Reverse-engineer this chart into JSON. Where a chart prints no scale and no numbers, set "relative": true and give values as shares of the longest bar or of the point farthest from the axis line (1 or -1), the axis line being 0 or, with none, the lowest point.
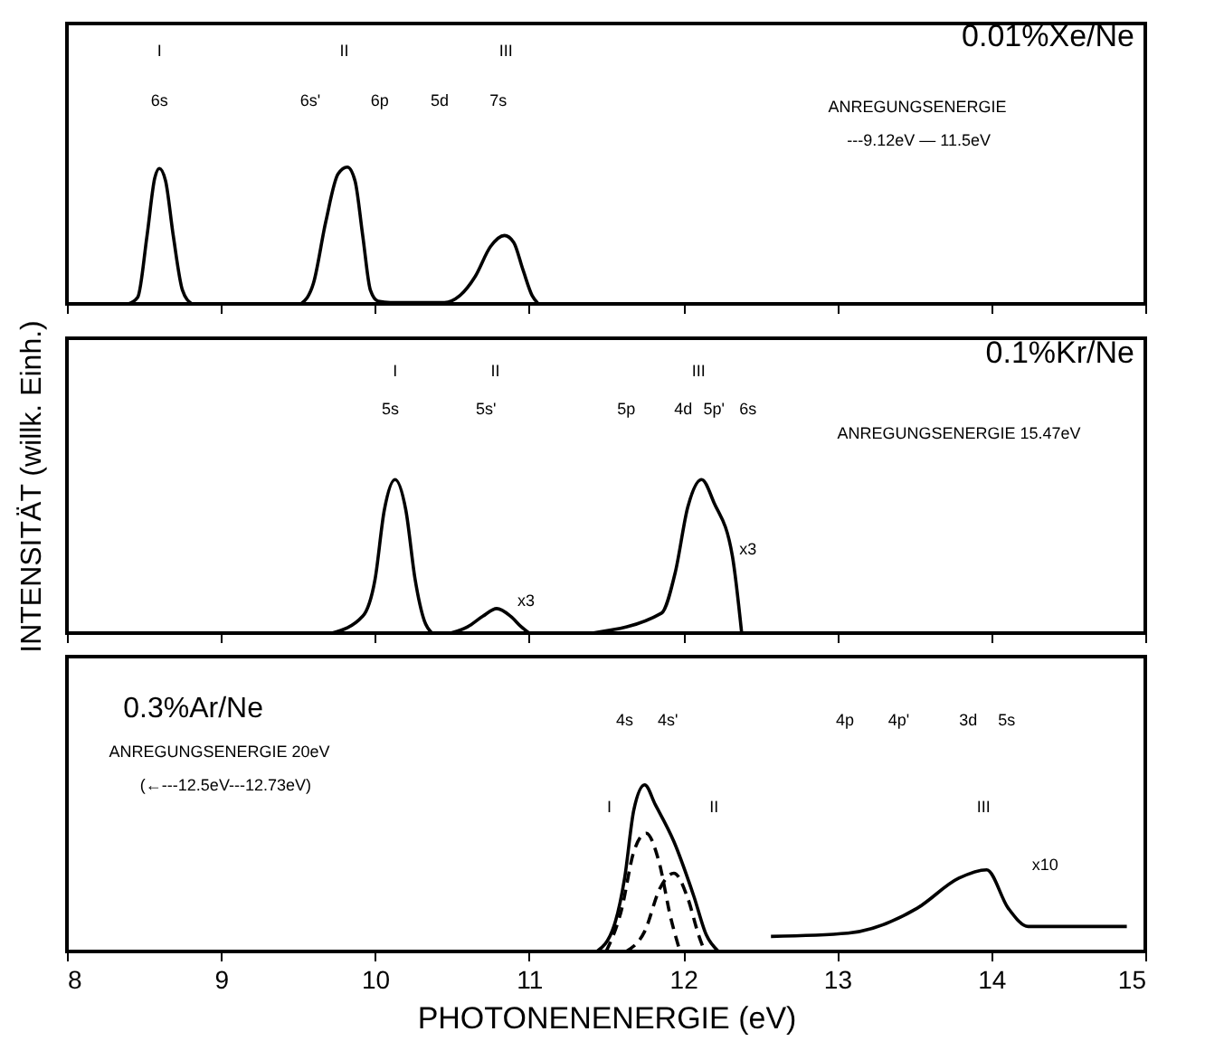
{
  "chart_data": [
    {
      "type": "line",
      "title": "0.01%Xe/Ne",
      "relative": true,
      "xlim": [
        8,
        15
      ],
      "xticks": [
        8,
        9,
        10,
        11,
        12,
        13,
        14,
        15
      ],
      "tick_labels": false,
      "series": [
        {
          "color": "#000000",
          "line_style": "solid",
          "x": [
            8.4,
            8.46,
            8.52,
            8.57,
            8.6,
            8.64,
            8.69,
            8.75,
            8.81
          ],
          "values": [
            0,
            0.05,
            0.5,
            0.92,
            0.99,
            0.9,
            0.5,
            0.1,
            0
          ]
        },
        {
          "color": "#000000",
          "line_style": "solid",
          "x": [
            9.52,
            9.6,
            9.68,
            9.76,
            9.82,
            9.87,
            9.92,
            9.97,
            10.02,
            10.1,
            10.45,
            10.55,
            10.65,
            10.75,
            10.84,
            10.9,
            10.96,
            11.02,
            11.06
          ],
          "values": [
            0,
            0.15,
            0.6,
            0.95,
            1.0,
            0.9,
            0.5,
            0.1,
            0.02,
            0.01,
            0.01,
            0.06,
            0.2,
            0.42,
            0.5,
            0.45,
            0.25,
            0.06,
            0
          ]
        }
      ],
      "annotations": [
        "I",
        "II",
        "III",
        "6s",
        "6s'",
        "6p",
        "5d",
        "7s",
        "ANREGUNGSENERGIE",
        "---9.12eV — 11.5eV"
      ]
    },
    {
      "type": "line",
      "title": "0.1%Kr/Ne",
      "ylabel": "INTENSITÄT (willk. Einh.)",
      "relative": true,
      "xlim": [
        8,
        15
      ],
      "xticks": [
        8,
        9,
        10,
        11,
        12,
        13,
        14,
        15
      ],
      "tick_labels": false,
      "series": [
        {
          "color": "#000000",
          "line_style": "solid",
          "x": [
            9.72,
            9.92,
            10.0,
            10.06,
            10.13,
            10.2,
            10.26,
            10.32,
            10.37
          ],
          "values": [
            0,
            0.11,
            0.35,
            0.8,
            1.0,
            0.8,
            0.35,
            0.08,
            0
          ]
        },
        {
          "color": "#000000",
          "line_style": "solid",
          "x": [
            10.49,
            10.6,
            10.7,
            10.79,
            10.88,
            10.95,
            11.0
          ],
          "values": [
            0,
            0.04,
            0.11,
            0.16,
            0.11,
            0.04,
            0
          ]
        },
        {
          "color": "#000000",
          "line_style": "solid",
          "x": [
            11.41,
            11.86,
            11.95,
            12.03,
            12.12,
            12.2,
            12.32,
            12.38
          ],
          "values": [
            0,
            0.13,
            0.4,
            0.82,
            1.0,
            0.85,
            0.5,
            0
          ]
        }
      ],
      "annotations": [
        "I",
        "II",
        "III",
        "5s",
        "5s'",
        "5p",
        "4d",
        "5p'",
        "6s",
        "ANREGUNGSENERGIE 15.47eV",
        "x3",
        "x3"
      ]
    },
    {
      "type": "line",
      "xlabel": "PHOTONENENERGIE (eV)",
      "relative": true,
      "xlim": [
        8,
        15
      ],
      "xticks": [
        8,
        9,
        10,
        11,
        12,
        13,
        14,
        15
      ],
      "tick_labels": "x",
      "series": [
        {
          "color": "#000000",
          "line_style": "solid",
          "x": [
            11.44,
            11.55,
            11.62,
            11.68,
            11.75,
            11.82,
            11.94,
            12.07,
            12.15,
            12.23
          ],
          "values": [
            0,
            0.15,
            0.44,
            0.85,
            1.0,
            0.88,
            0.66,
            0.33,
            0.1,
            0
          ]
        },
        {
          "color": "#000000",
          "line_style": "dashed",
          "x": [
            11.5,
            11.6,
            11.68,
            11.76,
            11.84,
            11.92,
            11.98
          ],
          "values": [
            0,
            0.25,
            0.6,
            0.71,
            0.55,
            0.2,
            0
          ]
        },
        {
          "color": "#000000",
          "line_style": "dashed",
          "x": [
            11.63,
            11.75,
            11.85,
            11.94,
            12.03,
            12.1,
            12.14
          ],
          "values": [
            0,
            0.12,
            0.38,
            0.47,
            0.32,
            0.1,
            0
          ]
        },
        {
          "color": "#000000",
          "line_style": "solid",
          "x": [
            12.57,
            13.07,
            13.52,
            13.79,
            13.97,
            14.11,
            14.24,
            14.5,
            14.88
          ],
          "values": [
            0.09,
            0.11,
            0.26,
            0.44,
            0.49,
            0.26,
            0.15,
            0.15,
            0.15
          ]
        }
      ],
      "annotations": [
        "0.3%Ar/Ne",
        "ANREGUNGSENERGIE 20eV",
        "(←---12.5eV---12.73eV)",
        "4s",
        "4s'",
        "4p",
        "4p'",
        "3d",
        "5s",
        "I",
        "II",
        "III",
        "x10"
      ]
    }
  ]
}
